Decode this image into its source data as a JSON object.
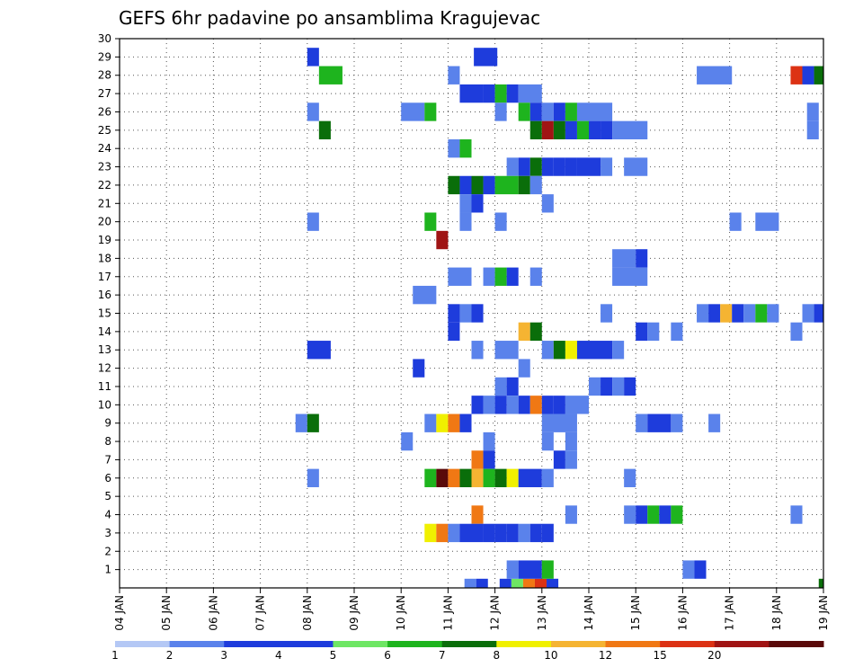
{
  "chart_data": {
    "type": "heatmap",
    "title": "GEFS 6hr padavine po ansamblima Kragujevac",
    "xlabel": "",
    "ylabel": "",
    "x_tick_labels": [
      "04 JAN",
      "05 JAN",
      "06 JAN",
      "07 JAN",
      "08 JAN",
      "09 JAN",
      "10 JAN",
      "11 JAN",
      "12 JAN",
      "13 JAN",
      "14 JAN",
      "15 JAN",
      "16 JAN",
      "17 JAN",
      "18 JAN",
      "19 JAN"
    ],
    "x_range_days": [
      0,
      15
    ],
    "y_range": [
      0,
      30
    ],
    "y_tick_labels": [
      "1",
      "2",
      "3",
      "4",
      "5",
      "6",
      "7",
      "8",
      "9",
      "10",
      "11",
      "12",
      "13",
      "14",
      "15",
      "16",
      "17",
      "18",
      "19",
      "20",
      "21",
      "22",
      "23",
      "24",
      "25",
      "26",
      "27",
      "28",
      "29",
      "30"
    ],
    "grid": "dotted",
    "colorbar": {
      "labels": [
        "1",
        "2",
        "3",
        "4",
        "5",
        "6",
        "7",
        "8",
        "10",
        "12",
        "15",
        "20"
      ],
      "colors": [
        "#b4c8f5",
        "#5a82eb",
        "#1e3cdc",
        "#1e3cdc",
        "#6ee664",
        "#1eb41e",
        "#0a6e0a",
        "#f0f000",
        "#f5b432",
        "#f07814",
        "#dc3214",
        "#a01414",
        "#5a0a0a"
      ]
    },
    "cells": [
      [
        0,
        7.35,
        0.25,
        1
      ],
      [
        0,
        7.6,
        0.25,
        3
      ],
      [
        0,
        8.1,
        0.25,
        2
      ],
      [
        0,
        8.35,
        0.25,
        4
      ],
      [
        0,
        8.6,
        0.25,
        9
      ],
      [
        0,
        8.85,
        0.25,
        10
      ],
      [
        0,
        9.1,
        0.25,
        3
      ],
      [
        29,
        7.55,
        0.5,
        3
      ],
      [
        29,
        4.0,
        0.25,
        2
      ],
      [
        28,
        4.25,
        0.5,
        5
      ],
      [
        28,
        7.0,
        0.25,
        1
      ],
      [
        28,
        12.3,
        0.75,
        1
      ],
      [
        28,
        14.3,
        0.25,
        10
      ],
      [
        28,
        14.55,
        0.25,
        2
      ],
      [
        28,
        14.8,
        0.25,
        6
      ],
      [
        27,
        7.25,
        0.5,
        2
      ],
      [
        27,
        7.75,
        0.25,
        3
      ],
      [
        27,
        8.0,
        0.25,
        5
      ],
      [
        27,
        8.25,
        0.25,
        2
      ],
      [
        27,
        8.5,
        0.5,
        1
      ],
      [
        26,
        4.0,
        0.25,
        1
      ],
      [
        26,
        6.0,
        0.5,
        1
      ],
      [
        26,
        6.5,
        0.25,
        5
      ],
      [
        26,
        8.0,
        0.25,
        1
      ],
      [
        26,
        8.5,
        0.25,
        5
      ],
      [
        26,
        8.75,
        0.25,
        3
      ],
      [
        26,
        9.0,
        0.25,
        1
      ],
      [
        26,
        9.25,
        0.25,
        2
      ],
      [
        26,
        9.5,
        0.25,
        5
      ],
      [
        26,
        9.75,
        0.75,
        1
      ],
      [
        26,
        14.65,
        0.25,
        1
      ],
      [
        25,
        4.25,
        0.25,
        6
      ],
      [
        25,
        8.75,
        0.25,
        6
      ],
      [
        25,
        9.0,
        0.25,
        11
      ],
      [
        25,
        9.25,
        0.25,
        6
      ],
      [
        25,
        9.5,
        0.25,
        3
      ],
      [
        25,
        9.75,
        0.25,
        5
      ],
      [
        25,
        10.0,
        0.25,
        3
      ],
      [
        25,
        10.25,
        0.25,
        2
      ],
      [
        25,
        10.5,
        0.75,
        1
      ],
      [
        25,
        14.65,
        0.25,
        1
      ],
      [
        24,
        7.0,
        0.25,
        1
      ],
      [
        24,
        7.25,
        0.25,
        5
      ],
      [
        23,
        8.25,
        0.25,
        1
      ],
      [
        23,
        8.5,
        0.25,
        2
      ],
      [
        23,
        8.75,
        0.25,
        6
      ],
      [
        23,
        9.0,
        0.25,
        3
      ],
      [
        23,
        9.25,
        0.25,
        2
      ],
      [
        23,
        9.5,
        0.25,
        3
      ],
      [
        23,
        9.75,
        0.5,
        2
      ],
      [
        23,
        10.25,
        0.25,
        1
      ],
      [
        23,
        10.75,
        0.5,
        1
      ],
      [
        22,
        7.0,
        0.25,
        6
      ],
      [
        22,
        7.25,
        0.25,
        3
      ],
      [
        22,
        7.5,
        0.25,
        6
      ],
      [
        22,
        7.75,
        0.25,
        3
      ],
      [
        22,
        8.0,
        0.5,
        5
      ],
      [
        22,
        8.5,
        0.25,
        6
      ],
      [
        22,
        8.75,
        0.25,
        1
      ],
      [
        21,
        7.25,
        0.25,
        1
      ],
      [
        21,
        7.5,
        0.25,
        2
      ],
      [
        21,
        9.0,
        0.25,
        1
      ],
      [
        20,
        4.0,
        0.25,
        1
      ],
      [
        20,
        6.5,
        0.25,
        5
      ],
      [
        20,
        7.25,
        0.25,
        1
      ],
      [
        20,
        8.0,
        0.25,
        1
      ],
      [
        20,
        13.0,
        0.25,
        1
      ],
      [
        20,
        13.55,
        0.5,
        1
      ],
      [
        19,
        6.75,
        0.25,
        11
      ],
      [
        18,
        10.5,
        0.5,
        1
      ],
      [
        18,
        11.0,
        0.25,
        2
      ],
      [
        17,
        7.0,
        0.5,
        1
      ],
      [
        17,
        7.75,
        0.25,
        1
      ],
      [
        17,
        8.0,
        0.25,
        5
      ],
      [
        17,
        8.25,
        0.25,
        2
      ],
      [
        17,
        8.75,
        0.25,
        1
      ],
      [
        17,
        10.5,
        0.75,
        1
      ],
      [
        16,
        6.25,
        0.5,
        1
      ],
      [
        15,
        7.0,
        0.25,
        3
      ],
      [
        15,
        7.25,
        0.25,
        1
      ],
      [
        15,
        7.5,
        0.25,
        3
      ],
      [
        15,
        10.25,
        0.25,
        1
      ],
      [
        15,
        12.3,
        0.25,
        1
      ],
      [
        15,
        12.55,
        0.25,
        3
      ],
      [
        15,
        12.8,
        0.25,
        8
      ],
      [
        15,
        13.05,
        0.25,
        2
      ],
      [
        15,
        13.3,
        0.25,
        1
      ],
      [
        15,
        13.55,
        0.25,
        5
      ],
      [
        15,
        13.8,
        0.25,
        1
      ],
      [
        15,
        14.55,
        0.25,
        1
      ],
      [
        15,
        14.8,
        0.25,
        3
      ],
      [
        14,
        7.0,
        0.25,
        2
      ],
      [
        14,
        8.5,
        0.25,
        8
      ],
      [
        14,
        8.75,
        0.25,
        6
      ],
      [
        14,
        11.0,
        0.25,
        3
      ],
      [
        14,
        11.25,
        0.25,
        1
      ],
      [
        14,
        11.75,
        0.25,
        1
      ],
      [
        14,
        14.3,
        0.25,
        1
      ],
      [
        13,
        4.0,
        0.5,
        3
      ],
      [
        13,
        7.5,
        0.25,
        1
      ],
      [
        13,
        8.0,
        0.5,
        1
      ],
      [
        13,
        9.0,
        0.25,
        1
      ],
      [
        13,
        9.25,
        0.25,
        6
      ],
      [
        13,
        9.5,
        0.25,
        7
      ],
      [
        13,
        9.75,
        0.25,
        3
      ],
      [
        13,
        10.0,
        0.5,
        2
      ],
      [
        13,
        10.5,
        0.25,
        1
      ],
      [
        12,
        6.25,
        0.25,
        3
      ],
      [
        12,
        8.5,
        0.25,
        1
      ],
      [
        11,
        8.0,
        0.25,
        1
      ],
      [
        11,
        8.25,
        0.25,
        2
      ],
      [
        11,
        10.0,
        0.25,
        1
      ],
      [
        11,
        10.25,
        0.25,
        2
      ],
      [
        11,
        10.5,
        0.25,
        1
      ],
      [
        11,
        10.75,
        0.25,
        2
      ],
      [
        10,
        7.5,
        0.25,
        2
      ],
      [
        10,
        7.75,
        0.25,
        1
      ],
      [
        10,
        8.0,
        0.25,
        2
      ],
      [
        10,
        8.25,
        0.25,
        1
      ],
      [
        10,
        8.5,
        0.25,
        3
      ],
      [
        10,
        8.75,
        0.25,
        9
      ],
      [
        10,
        9.0,
        0.25,
        3
      ],
      [
        10,
        9.25,
        0.25,
        2
      ],
      [
        10,
        9.5,
        0.5,
        1
      ],
      [
        9,
        3.75,
        0.25,
        1
      ],
      [
        9,
        4.0,
        0.25,
        6
      ],
      [
        9,
        6.5,
        0.25,
        1
      ],
      [
        9,
        6.75,
        0.25,
        7
      ],
      [
        9,
        7.0,
        0.25,
        9
      ],
      [
        9,
        7.25,
        0.25,
        2
      ],
      [
        9,
        9.0,
        0.75,
        1
      ],
      [
        9,
        11.0,
        0.25,
        1
      ],
      [
        9,
        11.25,
        0.5,
        2
      ],
      [
        9,
        11.75,
        0.25,
        1
      ],
      [
        9,
        12.55,
        0.25,
        1
      ],
      [
        8,
        6.0,
        0.25,
        1
      ],
      [
        8,
        7.75,
        0.25,
        1
      ],
      [
        8,
        9.0,
        0.25,
        1
      ],
      [
        8,
        9.5,
        0.25,
        1
      ],
      [
        7,
        7.5,
        0.25,
        9
      ],
      [
        7,
        7.75,
        0.25,
        3
      ],
      [
        7,
        9.25,
        0.25,
        2
      ],
      [
        7,
        9.5,
        0.25,
        1
      ],
      [
        6,
        4.0,
        0.25,
        1
      ],
      [
        6,
        6.5,
        0.25,
        5
      ],
      [
        6,
        6.75,
        0.25,
        12
      ],
      [
        6,
        7.0,
        0.25,
        9
      ],
      [
        6,
        7.25,
        0.25,
        6
      ],
      [
        6,
        7.5,
        0.25,
        8
      ],
      [
        6,
        7.75,
        0.25,
        5
      ],
      [
        6,
        8.0,
        0.25,
        6
      ],
      [
        6,
        8.25,
        0.25,
        7
      ],
      [
        6,
        8.5,
        0.5,
        2
      ],
      [
        6,
        9.0,
        0.25,
        1
      ],
      [
        6,
        10.75,
        0.25,
        1
      ],
      [
        4,
        7.5,
        0.25,
        9
      ],
      [
        4,
        9.5,
        0.25,
        1
      ],
      [
        4,
        10.75,
        0.25,
        1
      ],
      [
        4,
        11.0,
        0.25,
        2
      ],
      [
        4,
        11.25,
        0.25,
        5
      ],
      [
        4,
        11.5,
        0.25,
        2
      ],
      [
        4,
        11.75,
        0.25,
        5
      ],
      [
        4,
        14.3,
        0.25,
        1
      ],
      [
        3,
        6.5,
        0.25,
        7
      ],
      [
        3,
        6.75,
        0.25,
        9
      ],
      [
        3,
        7.0,
        0.25,
        1
      ],
      [
        3,
        7.25,
        0.5,
        2
      ],
      [
        3,
        7.75,
        0.25,
        3
      ],
      [
        3,
        8.0,
        0.25,
        2
      ],
      [
        3,
        8.25,
        0.25,
        3
      ],
      [
        3,
        8.5,
        0.25,
        1
      ],
      [
        3,
        8.75,
        0.25,
        3
      ],
      [
        3,
        9.0,
        0.25,
        2
      ],
      [
        1,
        8.25,
        0.25,
        1
      ],
      [
        1,
        8.5,
        0.5,
        3
      ],
      [
        1,
        9.0,
        0.25,
        5
      ],
      [
        1,
        12.0,
        0.25,
        1
      ],
      [
        1,
        12.25,
        0.25,
        2
      ],
      [
        0,
        14.9,
        0.1,
        6
      ]
    ]
  }
}
